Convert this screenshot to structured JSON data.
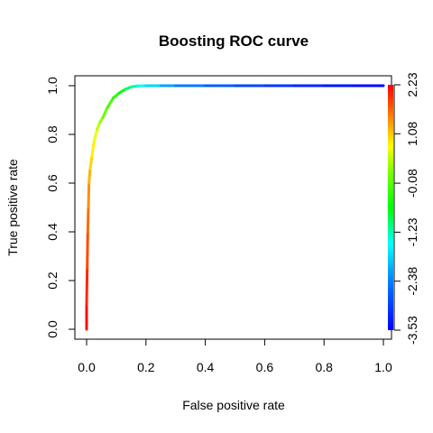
{
  "chart_data": {
    "type": "line",
    "title": "Boosting ROC curve",
    "xlabel": "False positive rate",
    "ylabel": "True positive rate",
    "xlim": [
      0,
      1
    ],
    "ylim": [
      0,
      1
    ],
    "xticks": [
      "0.0",
      "0.2",
      "0.4",
      "0.6",
      "0.8",
      "1.0"
    ],
    "yticks": [
      "0.0",
      "0.2",
      "0.4",
      "0.6",
      "0.8",
      "1.0"
    ],
    "grid": false,
    "legend": "none",
    "colorbar": {
      "labels": [
        "-3.53",
        "-2.38",
        "-1.23",
        "-0.08",
        "1.08",
        "2.23"
      ],
      "range": [
        -3.53,
        2.23
      ],
      "colormap": "rainbow (blue to red)",
      "placement": "right"
    },
    "series": [
      {
        "x": [
          0,
          0,
          0.002,
          0.004,
          0.006,
          0.008,
          0.012,
          0.018,
          0.025,
          0.035,
          0.045,
          0.055,
          0.07,
          0.09,
          0.11,
          0.13,
          0.15,
          0.17,
          0.2,
          0.25,
          0.3,
          0.4,
          0.5,
          0.6,
          0.7,
          0.8,
          0.9,
          1.0
        ],
        "y": [
          0,
          0.1,
          0.25,
          0.4,
          0.5,
          0.6,
          0.66,
          0.71,
          0.77,
          0.82,
          0.85,
          0.87,
          0.91,
          0.95,
          0.97,
          0.985,
          0.995,
          0.999,
          1.0,
          1.0,
          1.0,
          1.0,
          1.0,
          1.0,
          1.0,
          1.0,
          1.0,
          1.0
        ],
        "cutoff": [
          2.23,
          2.1,
          1.9,
          1.7,
          1.5,
          1.3,
          1.1,
          0.95,
          0.8,
          0.6,
          0.4,
          0.2,
          -0.05,
          -0.3,
          -0.55,
          -0.8,
          -1.05,
          -1.3,
          -1.6,
          -2.0,
          -2.3,
          -2.6,
          -2.8,
          -3.0,
          -3.15,
          -3.3,
          -3.43,
          -3.53
        ]
      }
    ]
  }
}
